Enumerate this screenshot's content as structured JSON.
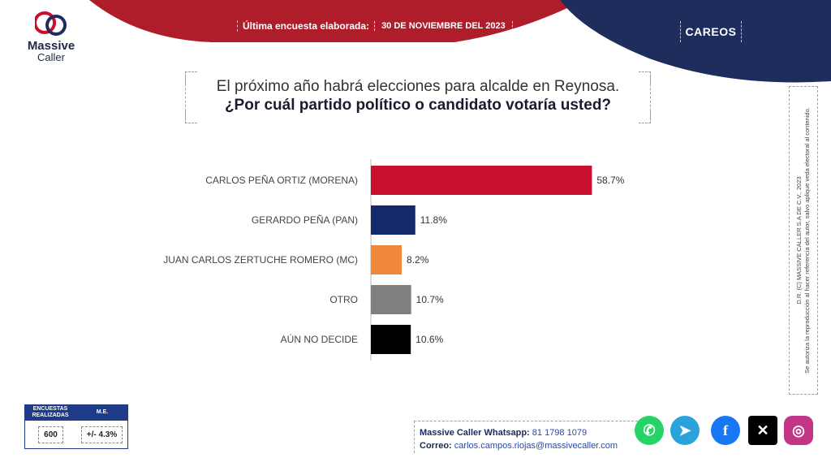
{
  "header": {
    "brand_line1": "Massive",
    "brand_line2": "Caller",
    "survey_label": "Última encuesta elaborada:",
    "survey_date": "30 DE NOVIEMBRE DEL 2023",
    "section": "CAREOS"
  },
  "question": {
    "line1": "El próximo año habrá elecciones para alcalde en Reynosa.",
    "line2": "¿Por cuál partido político o candidato votaría usted?"
  },
  "chart_data": {
    "type": "bar",
    "orientation": "horizontal",
    "categories": [
      "CARLOS PEÑA ORTIZ (MORENA)",
      "GERARDO PEÑA (PAN)",
      "JUAN CARLOS ZERTUCHE ROMERO (MC)",
      "OTRO",
      "AÚN NO DECIDE"
    ],
    "values": [
      58.7,
      11.8,
      8.2,
      10.7,
      10.6
    ],
    "value_labels": [
      "58.7%",
      "11.8%",
      "8.2%",
      "10.7%",
      "10.6%"
    ],
    "colors": [
      "#c8102e",
      "#13296b",
      "#f0883a",
      "#808080",
      "#000000"
    ],
    "xlim": [
      0,
      100
    ],
    "grid": false,
    "legend": "none"
  },
  "side_note": {
    "line1": "D.R. (C) MASSIVE CALLER S.A DE C.V., 2023",
    "line2": "Se autoriza la reproducción al hacer referencia del autor, salvo aplique veda electoral al contenido."
  },
  "stats": {
    "surveys_header": "ENCUESTAS REALIZADAS",
    "me_header": "M.E.",
    "surveys_value": "600",
    "me_value": "+/- 4.3%"
  },
  "contact": {
    "whatsapp_label": "Massive Caller Whatsapp:",
    "whatsapp_value": "81 1798 1079",
    "email_label": "Correo:",
    "email_value": "carlos.campos.riojas@massivecaller.com"
  },
  "social_icons": [
    "whatsapp-icon",
    "telegram-icon",
    "facebook-icon",
    "x-icon",
    "instagram-icon"
  ]
}
